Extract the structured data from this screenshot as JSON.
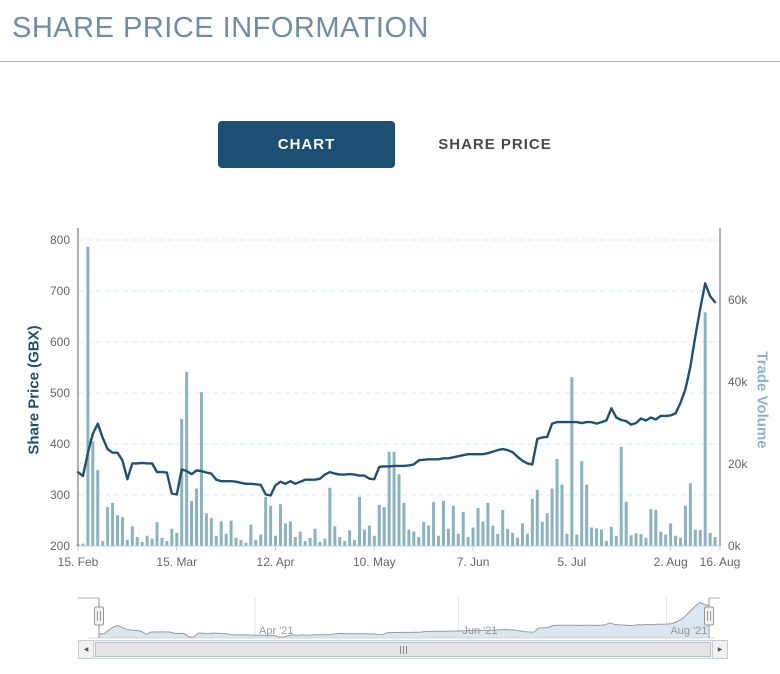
{
  "page": {
    "title": "SHARE PRICE INFORMATION"
  },
  "tabs": {
    "chart_label": "CHART",
    "share_price_label": "SHARE PRICE",
    "active_tab": "CHART",
    "active_bg_color": "#1d4e74"
  },
  "icons": {
    "scrollbar_left_arrow": "◀",
    "scrollbar_right_arrow": "▶"
  },
  "colors": {
    "title_text": "#6f8da5",
    "price_line": "#205175",
    "volume_bar": "#8ab3c0",
    "grid_line": "#dde9ef",
    "axis_line": "#5a646c",
    "x_axis_line": "#c5ced4",
    "tick_label": "#666666",
    "nav_outline": "#9b9b9b",
    "nav_fill": "#dbe7ee",
    "nav_label": "#999999"
  },
  "chart_data": {
    "type": "line+bar dual-axis time series (daily, weekdays)",
    "title": "",
    "x_max_index": 130,
    "x_ticks": [
      {
        "label": "15. Feb",
        "index": 0
      },
      {
        "label": "15. Mar",
        "index": 20
      },
      {
        "label": "12. Apr",
        "index": 40
      },
      {
        "label": "10. May",
        "index": 60
      },
      {
        "label": "7. Jun",
        "index": 80
      },
      {
        "label": "5. Jul",
        "index": 100
      },
      {
        "label": "2. Aug",
        "index": 120
      },
      {
        "label": "16. Aug",
        "index": 130
      }
    ],
    "y_left": {
      "title": "Share Price (GBX)",
      "ticks": [
        200,
        300,
        400,
        500,
        600,
        700,
        800
      ],
      "range": [
        200,
        800
      ]
    },
    "y_right": {
      "title": "Trade Volume",
      "ticks": [
        {
          "label": "0k",
          "v": 0
        },
        {
          "label": "20k",
          "v": 20
        },
        {
          "label": "40k",
          "v": 40
        },
        {
          "label": "60k",
          "v": 60
        }
      ],
      "range_k": [
        0,
        84
      ]
    },
    "series": [
      {
        "name": "Share Price",
        "type": "line",
        "color": "#205175",
        "values": [
          345,
          337,
          383,
          420,
          440,
          412,
          390,
          383,
          383,
          368,
          331,
          362,
          362,
          363,
          362,
          362,
          345,
          345,
          344,
          303,
          301,
          350,
          347,
          341,
          348,
          347,
          344,
          342,
          330,
          327,
          327,
          327,
          326,
          324,
          322,
          322,
          321,
          320,
          301,
          299,
          319,
          326,
          322,
          327,
          322,
          326,
          330,
          330,
          330,
          332,
          340,
          345,
          342,
          340,
          340,
          341,
          340,
          338,
          338,
          332,
          331,
          355,
          356,
          356,
          357,
          357,
          357,
          358,
          360,
          368,
          369,
          370,
          370,
          370,
          372,
          372,
          374,
          376,
          378,
          380,
          380,
          380,
          380,
          382,
          385,
          388,
          390,
          388,
          384,
          375,
          367,
          362,
          360,
          410,
          413,
          414,
          440,
          443,
          443,
          443,
          443,
          443,
          441,
          443,
          443,
          440,
          443,
          446,
          470,
          452,
          447,
          445,
          438,
          441,
          450,
          446,
          452,
          448,
          455,
          455,
          456,
          460,
          481,
          507,
          552,
          611,
          665,
          715,
          690,
          678
        ]
      },
      {
        "name": "Trade Volume",
        "type": "bar",
        "color": "#8ab3c0",
        "values_k": [
          0.4,
          0.6,
          73,
          25.5,
          18.5,
          1.2,
          9.5,
          10.5,
          7.5,
          7,
          1.5,
          4.8,
          2.2,
          1,
          2.5,
          1.8,
          5.8,
          2,
          1.2,
          4.2,
          3.2,
          31,
          42.5,
          11,
          14,
          37.5,
          8,
          6.8,
          2.5,
          6,
          3,
          6.2,
          2,
          1.5,
          0.8,
          5.2,
          1.5,
          2.8,
          12,
          9.8,
          2.5,
          10.2,
          5.5,
          6,
          2.2,
          3.5,
          1.2,
          2,
          4.2,
          1,
          1.8,
          14.2,
          4.8,
          2.2,
          1.2,
          3.8,
          1.5,
          12,
          4,
          5,
          2.5,
          10,
          9.5,
          23,
          23,
          17.5,
          10.5,
          4,
          3.5,
          2.2,
          5.9,
          5,
          10.7,
          2.5,
          11,
          4.2,
          9.8,
          3,
          8.3,
          2.2,
          4.5,
          9.3,
          6,
          10.5,
          5,
          3,
          8.8,
          4.2,
          3.2,
          2,
          5.5,
          3,
          11.5,
          13.7,
          5.9,
          8,
          14,
          21.2,
          15,
          3,
          41.2,
          2.8,
          20.7,
          15,
          4.5,
          4.3,
          4,
          1.2,
          4.7,
          2.5,
          24.2,
          10.8,
          2.6,
          3.1,
          2.9,
          2,
          9,
          8.8,
          3.5,
          2.8,
          5.5,
          2.5,
          2,
          9.8,
          15.3,
          4,
          3.9,
          57,
          3.2,
          2.2
        ]
      }
    ],
    "navigator": {
      "ticks": [
        {
          "label": "Apr '21",
          "index": 33
        },
        {
          "label": "Jun '21",
          "index": 76
        },
        {
          "label": "Aug '21",
          "index": 120
        }
      ],
      "price_scale_range": [
        290,
        720
      ]
    }
  }
}
